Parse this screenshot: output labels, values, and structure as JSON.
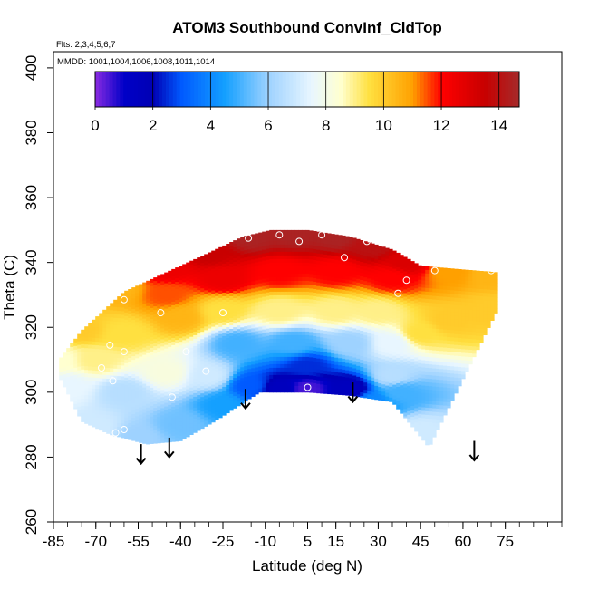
{
  "chart_data": {
    "type": "heatmap",
    "title": "ATOM3 Southbound ConvInf_CldTop",
    "flights_label": "Flts: 2,3,4,5,6,7",
    "mmdd_label": "MMDD: 1001,1004,1006,1008,1011,1014",
    "xlabel": "Latitude (deg N)",
    "ylabel": "Theta (C)",
    "xlim": [
      -85,
      95
    ],
    "ylim": [
      260,
      405
    ],
    "x_ticks": [
      -85,
      -70,
      -55,
      -40,
      -25,
      -10,
      5,
      15,
      30,
      45,
      60,
      75
    ],
    "y_ticks": [
      260,
      280,
      300,
      320,
      340,
      360,
      380,
      400
    ],
    "colorbar": {
      "range": [
        0,
        14.7
      ],
      "ticks": [
        0,
        2,
        4,
        6,
        8,
        10,
        12,
        14
      ],
      "stops": [
        {
          "v": 0,
          "c": "#8a2be2"
        },
        {
          "v": 1,
          "c": "#0000c8"
        },
        {
          "v": 2,
          "c": "#0000b4"
        },
        {
          "v": 3,
          "c": "#005aff"
        },
        {
          "v": 4.5,
          "c": "#14a0ff"
        },
        {
          "v": 6,
          "c": "#9ed2ff"
        },
        {
          "v": 7.5,
          "c": "#e8f6ff"
        },
        {
          "v": 8.5,
          "c": "#ffffd0"
        },
        {
          "v": 9.5,
          "c": "#ffe040"
        },
        {
          "v": 11,
          "c": "#ffa000"
        },
        {
          "v": 12,
          "c": "#ff0000"
        },
        {
          "v": 13.5,
          "c": "#c80000"
        },
        {
          "v": 14.7,
          "c": "#a52a2a"
        }
      ]
    },
    "field_region": {
      "top": [
        [
          -83,
          310
        ],
        [
          -75,
          319
        ],
        [
          -60,
          331
        ],
        [
          -45,
          337
        ],
        [
          -30,
          343
        ],
        [
          -18,
          348
        ],
        [
          -8,
          350
        ],
        [
          5,
          350
        ],
        [
          20,
          348
        ],
        [
          35,
          344
        ],
        [
          45,
          339
        ],
        [
          58,
          338
        ],
        [
          72,
          337
        ]
      ],
      "bottom": [
        [
          -83,
          305
        ],
        [
          -75,
          291
        ],
        [
          -65,
          287
        ],
        [
          -52,
          284
        ],
        [
          -40,
          285
        ],
        [
          -28,
          291
        ],
        [
          -12,
          300
        ],
        [
          5,
          300
        ],
        [
          20,
          299
        ],
        [
          35,
          297
        ],
        [
          48,
          283
        ],
        [
          72,
          325
        ]
      ]
    },
    "field_samples": [
      {
        "x": -83,
        "y": 310,
        "v": 8.5
      },
      {
        "x": -75,
        "y": 319,
        "v": 10
      },
      {
        "x": -62,
        "y": 332,
        "v": 10.5
      },
      {
        "x": -45,
        "y": 338,
        "v": 12.5
      },
      {
        "x": -30,
        "y": 343,
        "v": 13.5
      },
      {
        "x": -15,
        "y": 348,
        "v": 14.5
      },
      {
        "x": 0,
        "y": 349,
        "v": 14.5
      },
      {
        "x": 15,
        "y": 348,
        "v": 14.5
      },
      {
        "x": 28,
        "y": 345,
        "v": 14
      },
      {
        "x": 40,
        "y": 340,
        "v": 13
      },
      {
        "x": 55,
        "y": 337,
        "v": 11
      },
      {
        "x": 70,
        "y": 336,
        "v": 10.5
      },
      {
        "x": 70,
        "y": 326,
        "v": 10
      },
      {
        "x": 55,
        "y": 322,
        "v": 10
      },
      {
        "x": 45,
        "y": 318,
        "v": 9.5
      },
      {
        "x": 45,
        "y": 288,
        "v": 7
      },
      {
        "x": 38,
        "y": 300,
        "v": 5
      },
      {
        "x": 28,
        "y": 297,
        "v": 4
      },
      {
        "x": 20,
        "y": 301,
        "v": 1.5
      },
      {
        "x": 5,
        "y": 301,
        "v": 0.5
      },
      {
        "x": -5,
        "y": 301,
        "v": 1.5
      },
      {
        "x": -15,
        "y": 302,
        "v": 3
      },
      {
        "x": -25,
        "y": 296,
        "v": 4.5
      },
      {
        "x": -40,
        "y": 290,
        "v": 5.5
      },
      {
        "x": -55,
        "y": 286,
        "v": 6
      },
      {
        "x": -70,
        "y": 289,
        "v": 7
      },
      {
        "x": -80,
        "y": 302,
        "v": 7.5
      },
      {
        "x": -60,
        "y": 300,
        "v": 6.5
      },
      {
        "x": -45,
        "y": 306,
        "v": 8.2
      },
      {
        "x": -20,
        "y": 315,
        "v": 5
      },
      {
        "x": 0,
        "y": 315,
        "v": 5
      },
      {
        "x": 20,
        "y": 315,
        "v": 6
      },
      {
        "x": 35,
        "y": 315,
        "v": 7.5
      },
      {
        "x": -60,
        "y": 318,
        "v": 9.5
      },
      {
        "x": -40,
        "y": 323,
        "v": 10.5
      },
      {
        "x": -25,
        "y": 325,
        "v": 9.5
      },
      {
        "x": -5,
        "y": 325,
        "v": 9
      },
      {
        "x": 15,
        "y": 325,
        "v": 9
      },
      {
        "x": 30,
        "y": 325,
        "v": 9
      },
      {
        "x": -45,
        "y": 330,
        "v": 11.5
      },
      {
        "x": -25,
        "y": 335,
        "v": 12.5
      },
      {
        "x": -5,
        "y": 337,
        "v": 12
      },
      {
        "x": 15,
        "y": 337,
        "v": 12
      },
      {
        "x": 35,
        "y": 335,
        "v": 12
      },
      {
        "x": -70,
        "y": 310,
        "v": 9
      },
      {
        "x": -30,
        "y": 305,
        "v": 7
      },
      {
        "x": 5,
        "y": 308,
        "v": 2.5
      },
      {
        "x": 35,
        "y": 305,
        "v": 6.5
      }
    ],
    "observations": [
      {
        "x": -16,
        "y": 347.5
      },
      {
        "x": -5,
        "y": 348.5
      },
      {
        "x": 2,
        "y": 346.5
      },
      {
        "x": 10,
        "y": 348.5
      },
      {
        "x": 18,
        "y": 341.5
      },
      {
        "x": 26,
        "y": 346.5
      },
      {
        "x": 40,
        "y": 334.5
      },
      {
        "x": 50,
        "y": 337.5
      },
      {
        "x": 70,
        "y": 337.5
      },
      {
        "x": 37,
        "y": 330.5
      },
      {
        "x": -60,
        "y": 328.5
      },
      {
        "x": -47,
        "y": 324.5
      },
      {
        "x": -25,
        "y": 324.5
      },
      {
        "x": -65,
        "y": 314.5
      },
      {
        "x": -60,
        "y": 312.5
      },
      {
        "x": -38,
        "y": 312.5
      },
      {
        "x": -68,
        "y": 307.5
      },
      {
        "x": -31,
        "y": 306.5
      },
      {
        "x": -64,
        "y": 303.5
      },
      {
        "x": -43,
        "y": 298.5
      },
      {
        "x": 5,
        "y": 301.5
      },
      {
        "x": -60,
        "y": 288.5
      },
      {
        "x": -63,
        "y": 287.5
      }
    ],
    "arrows": [
      {
        "x": -54,
        "top": 284,
        "bottom": 278
      },
      {
        "x": -44,
        "top": 286,
        "bottom": 280
      },
      {
        "x": -17,
        "top": 301,
        "bottom": 295
      },
      {
        "x": 21,
        "top": 303,
        "bottom": 297
      },
      {
        "x": 64,
        "top": 285,
        "bottom": 279
      }
    ]
  }
}
